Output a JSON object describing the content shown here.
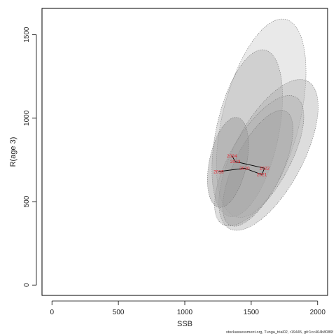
{
  "chart_data": {
    "type": "scatter",
    "xlabel": "SSB",
    "ylabel": "R(age 3)",
    "xlim": [
      -75,
      2075
    ],
    "ylim": [
      -62,
      1658
    ],
    "x_ticks": [
      0,
      500,
      1000,
      1500,
      2000
    ],
    "y_ticks": [
      0,
      500,
      1000,
      1500
    ],
    "grid": false,
    "ellipses": [
      {
        "center": [
          1575,
          1000
        ],
        "semi_axes": [
          290,
          610
        ],
        "rotation_deg": 14,
        "fill": "#c8c8c8",
        "opacity": 0.4
      },
      {
        "center": [
          1470,
          910
        ],
        "semi_axes": [
          235,
          510
        ],
        "rotation_deg": 12,
        "fill": "#a9a9a9",
        "opacity": 0.4
      },
      {
        "center": [
          1630,
          780
        ],
        "semi_axes": [
          260,
          500
        ],
        "rotation_deg": 28,
        "fill": "#a9a9a9",
        "opacity": 0.4
      },
      {
        "center": [
          1560,
          745
        ],
        "semi_axes": [
          220,
          440
        ],
        "rotation_deg": 30,
        "fill": "#a9a9a9",
        "opacity": 0.4
      },
      {
        "center": [
          1550,
          700
        ],
        "semi_axes": [
          180,
          380
        ],
        "rotation_deg": 26,
        "fill": "#a0a0a0",
        "opacity": 0.4
      },
      {
        "center": [
          1325,
          735
        ],
        "semi_axes": [
          140,
          275
        ],
        "rotation_deg": 12,
        "fill": "#999999",
        "opacity": 0.45
      }
    ],
    "points": [
      {
        "label": "2019",
        "x": 1255,
        "y": 680
      },
      {
        "label": "2020",
        "x": 1450,
        "y": 700
      },
      {
        "label": "2021",
        "x": 1580,
        "y": 662
      },
      {
        "label": "2022",
        "x": 1600,
        "y": 700
      },
      {
        "label": "2023",
        "x": 1380,
        "y": 740
      },
      {
        "label": "2024",
        "x": 1355,
        "y": 775
      }
    ]
  },
  "footer": "stockassessment.org, Tunga_trial02, r19445, git:1cc464b8086f"
}
